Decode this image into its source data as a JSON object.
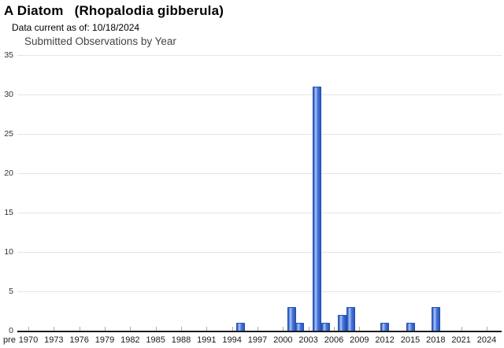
{
  "header": {
    "common_name": "A Diatom",
    "scientific_name": "(Rhopalodia gibberula)",
    "data_current": "Data current as of: 10/18/2024"
  },
  "chart_data": {
    "type": "bar",
    "title": "Submitted Observations by Year",
    "xlabel": "",
    "ylabel": "",
    "ylim": [
      0,
      35
    ],
    "y_ticks": [
      0,
      5,
      10,
      15,
      20,
      25,
      30,
      35
    ],
    "x_tick_labels": [
      "pre",
      "1970",
      "1973",
      "1976",
      "1979",
      "1982",
      "1985",
      "1988",
      "1991",
      "1994",
      "1997",
      "2000",
      "2003",
      "2006",
      "2009",
      "2012",
      "2015",
      "2018",
      "2021",
      "2024"
    ],
    "x_year_range": [
      1970,
      2024
    ],
    "grid": true,
    "legend_position": "none",
    "bar_fill": "#4775D8",
    "bar_border": "#2350B0",
    "series": [
      {
        "name": "Submitted Observations",
        "points": [
          {
            "year": 1995,
            "value": 1
          },
          {
            "year": 2001,
            "value": 3
          },
          {
            "year": 2002,
            "value": 1
          },
          {
            "year": 2004,
            "value": 31
          },
          {
            "year": 2005,
            "value": 1
          },
          {
            "year": 2007,
            "value": 2
          },
          {
            "year": 2008,
            "value": 3
          },
          {
            "year": 2012,
            "value": 1
          },
          {
            "year": 2015,
            "value": 1
          },
          {
            "year": 2018,
            "value": 3
          }
        ]
      }
    ]
  }
}
